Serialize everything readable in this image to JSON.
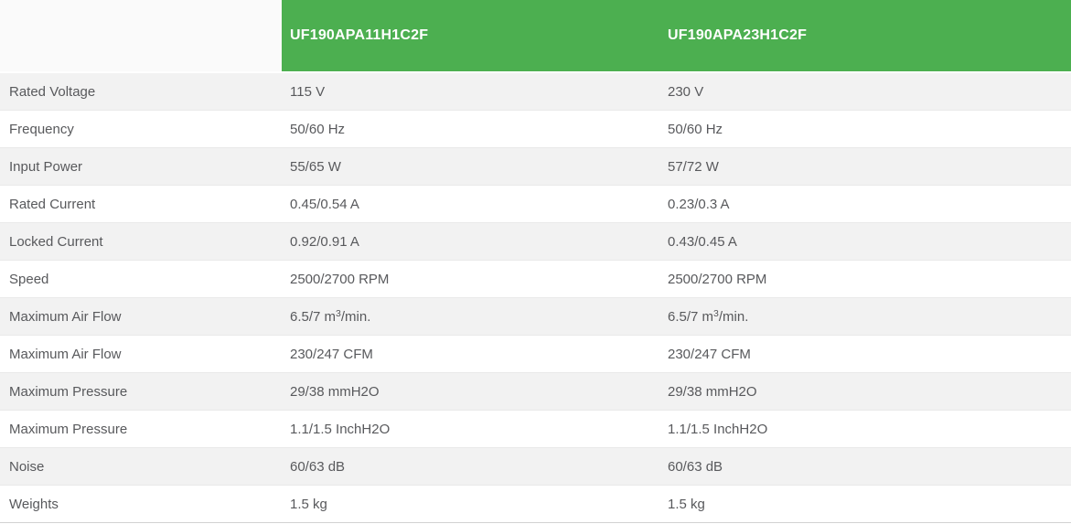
{
  "table": {
    "header": {
      "models": [
        "UF190APA11H1C2F",
        "UF190APA23H1C2F"
      ]
    },
    "rows": [
      {
        "label": "Rated Voltage",
        "values": [
          "115 V",
          "230 V"
        ]
      },
      {
        "label": "Frequency",
        "values": [
          "50/60 Hz",
          "50/60 Hz"
        ]
      },
      {
        "label": "Input Power",
        "values": [
          "55/65 W",
          "57/72 W"
        ]
      },
      {
        "label": "Rated Current",
        "values": [
          "0.45/0.54 A",
          "0.23/0.3 A"
        ]
      },
      {
        "label": "Locked Current",
        "values": [
          "0.92/0.91 A",
          "0.43/0.45 A"
        ]
      },
      {
        "label": "Speed",
        "values": [
          "2500/2700 RPM",
          "2500/2700 RPM"
        ]
      },
      {
        "label": "Maximum Air Flow",
        "values": [
          [
            {
              "text": "6.5/7 m"
            },
            {
              "text": "3",
              "sup": true
            },
            {
              "text": "/min."
            }
          ],
          [
            {
              "text": "6.5/7 m"
            },
            {
              "text": "3",
              "sup": true
            },
            {
              "text": "/min."
            }
          ]
        ]
      },
      {
        "label": "Maximum Air Flow",
        "values": [
          "230/247 CFM",
          "230/247 CFM"
        ]
      },
      {
        "label": "Maximum Pressure",
        "values": [
          "29/38 mmH2O",
          "29/38 mmH2O"
        ]
      },
      {
        "label": "Maximum Pressure",
        "values": [
          "1.1/1.5 InchH2O",
          "1.1/1.5 InchH2O"
        ]
      },
      {
        "label": "Noise",
        "values": [
          "60/63 dB",
          "60/63 dB"
        ]
      },
      {
        "label": "Weights",
        "values": [
          "1.5 kg",
          "1.5 kg"
        ]
      }
    ],
    "colors": {
      "header_green": "#4caf50",
      "header_text": "#ffffff",
      "header_spacer_bg": "#fafafa",
      "row_alt_bg": "#f2f2f2",
      "row_bg": "#ffffff",
      "row_border": "#e9e9e9",
      "bottom_border": "#d2d2d2",
      "text": "#58595c"
    }
  }
}
